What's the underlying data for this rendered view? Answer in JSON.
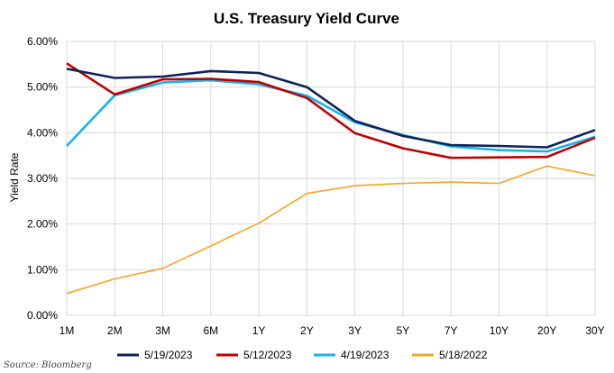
{
  "chart_data": {
    "type": "line",
    "title": "U.S. Treasury Yield Curve",
    "xlabel": "",
    "ylabel": "Yield Rate",
    "categories": [
      "1M",
      "2M",
      "3M",
      "6M",
      "1Y",
      "2Y",
      "3Y",
      "5Y",
      "7Y",
      "10Y",
      "20Y",
      "30Y"
    ],
    "y_ticks": [
      "0.00%",
      "1.00%",
      "2.00%",
      "3.00%",
      "4.00%",
      "5.00%",
      "6.00%"
    ],
    "ylim": [
      0,
      6
    ],
    "grid": "both",
    "legend_position": "bottom",
    "series": [
      {
        "name": "5/19/2023",
        "color": "#0d2357",
        "values": [
          5.4,
          5.2,
          5.23,
          5.35,
          5.31,
          5.0,
          4.26,
          3.93,
          3.73,
          3.71,
          3.68,
          4.06
        ]
      },
      {
        "name": "5/12/2023",
        "color": "#c00000",
        "values": [
          5.52,
          4.84,
          5.17,
          5.18,
          5.11,
          4.76,
          3.99,
          3.66,
          3.45,
          3.46,
          3.47,
          3.89
        ]
      },
      {
        "name": "4/19/2023",
        "color": "#17b4e9",
        "values": [
          3.71,
          4.82,
          5.1,
          5.15,
          5.06,
          4.81,
          4.23,
          3.95,
          3.7,
          3.62,
          3.59,
          3.91
        ]
      },
      {
        "name": "5/18/2022",
        "color": "#f5a623",
        "values": [
          0.48,
          0.8,
          1.03,
          1.52,
          2.02,
          2.67,
          2.84,
          2.89,
          2.92,
          2.89,
          3.27,
          3.06
        ]
      }
    ]
  },
  "source": "Source: Bloomberg"
}
